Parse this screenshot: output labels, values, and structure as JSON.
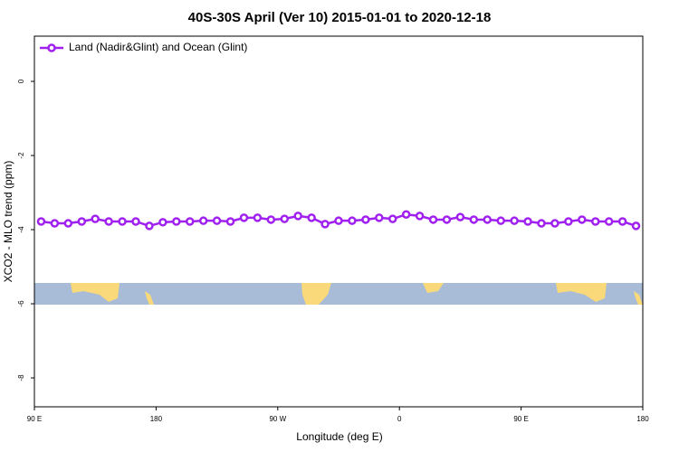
{
  "chart_data": {
    "type": "line",
    "title": "40S-30S April (Ver 10)   2015-01-01 to 2020-12-18",
    "xlabel": "Longitude (deg E)",
    "ylabel": "XCO2 - MLO trend (ppm)",
    "x": [
      95,
      105,
      115,
      125,
      135,
      145,
      155,
      165,
      175,
      185,
      195,
      205,
      215,
      225,
      235,
      245,
      255,
      265,
      275,
      285,
      295,
      305,
      315,
      325,
      335,
      345,
      355,
      365,
      375,
      385,
      395,
      405,
      415,
      425,
      435,
      445,
      455,
      465,
      475,
      485,
      495,
      505,
      515,
      525,
      535
    ],
    "series": [
      {
        "name": "Land (Nadir&Glint) and Ocean (Glint)",
        "color": "#a020f0",
        "values": [
          -3.78,
          -3.83,
          -3.83,
          -3.78,
          -3.71,
          -3.78,
          -3.78,
          -3.78,
          -3.9,
          -3.8,
          -3.78,
          -3.78,
          -3.76,
          -3.76,
          -3.78,
          -3.68,
          -3.68,
          -3.73,
          -3.71,
          -3.63,
          -3.68,
          -3.85,
          -3.76,
          -3.76,
          -3.73,
          -3.68,
          -3.71,
          -3.59,
          -3.63,
          -3.73,
          -3.73,
          -3.66,
          -3.73,
          -3.73,
          -3.76,
          -3.76,
          -3.78,
          -3.83,
          -3.83,
          -3.78,
          -3.73,
          -3.78,
          -3.78,
          -3.78,
          -3.9
        ]
      }
    ],
    "xlim": [
      90,
      540
    ],
    "xticks": [
      {
        "value": 90,
        "label": "90 E"
      },
      180,
      {
        "value": 270,
        "label": "90 W"
      },
      {
        "value": 360,
        "label": "0"
      },
      {
        "value": 450,
        "label": "90 E"
      },
      {
        "value": 540,
        "label": "180"
      }
    ],
    "ylim": [
      -8.78,
      1.22
    ],
    "yticks": [
      0,
      -2,
      -4,
      -6,
      -8
    ],
    "legend": "top-left"
  }
}
